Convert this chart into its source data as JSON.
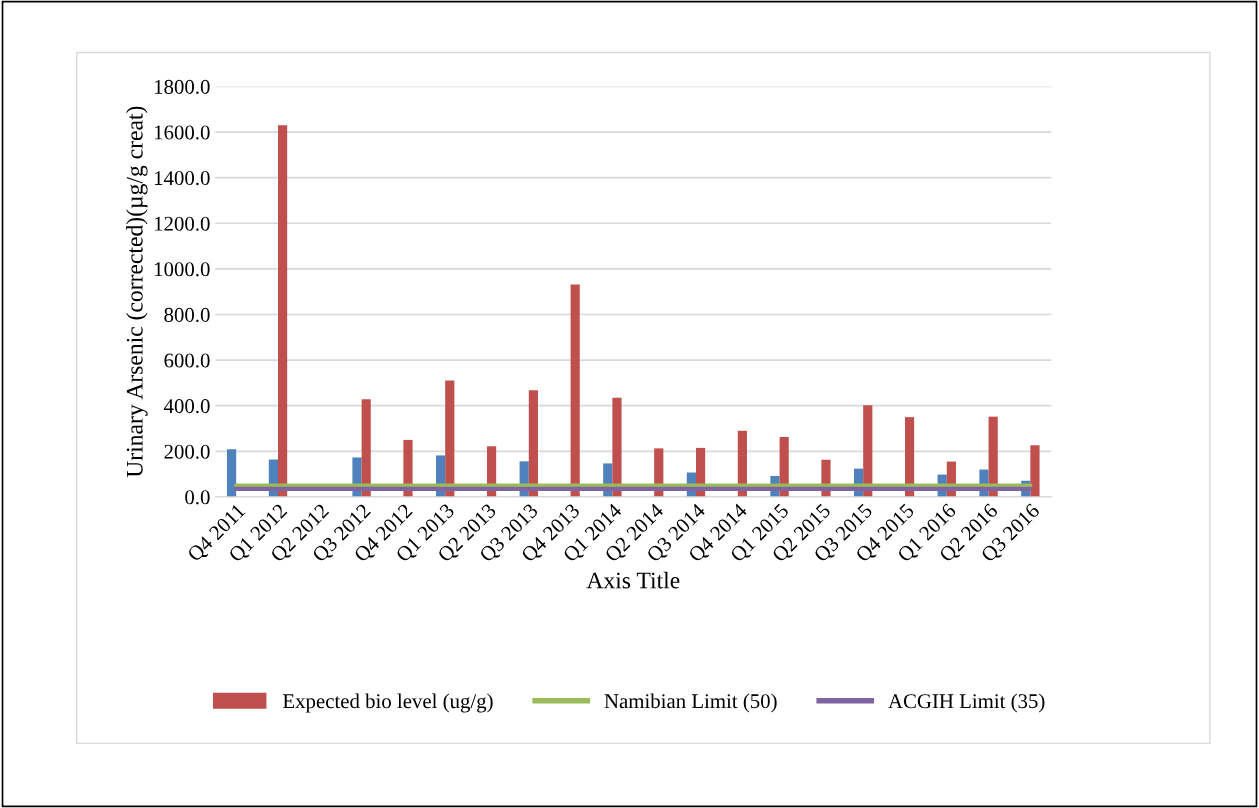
{
  "chart_data": {
    "type": "bar",
    "ylabel": "Urinary Arsenic (corrected)(µg/g creat)",
    "xlabel": "Axis Title",
    "categories": [
      "Q4 2011",
      "Q1 2012",
      "Q2 2012",
      "Q3 2012",
      "Q4 2012",
      "Q1 2013",
      "Q2 2013",
      "Q3 2013",
      "Q4 2013",
      "Q1 2014",
      "Q2 2014",
      "Q3 2014",
      "Q4 2014",
      "Q1 2015",
      "Q2 2015",
      "Q3 2015",
      "Q4 2015",
      "Q1 2016",
      "Q2 2016",
      "Q3 2016"
    ],
    "series": [
      {
        "color": "#4f81bd",
        "values": [
          209,
          164,
          null,
          173,
          null,
          182,
          null,
          156,
          null,
          147,
          null,
          107,
          null,
          92,
          null,
          124,
          null,
          98,
          120,
          71
        ]
      },
      {
        "name": "Expected bio level (ug/g)",
        "color": "#c0504d",
        "values": [
          null,
          1630,
          null,
          428,
          250,
          510,
          222,
          468,
          932,
          435,
          213,
          215,
          290,
          263,
          163,
          402,
          350,
          155,
          352,
          227
        ]
      },
      {
        "type": "line",
        "name": "Namibian Limit (50)",
        "color": "#9bbb59",
        "values": [
          50,
          50,
          50,
          50,
          50,
          50,
          50,
          50,
          50,
          50,
          50,
          50,
          50,
          50,
          50,
          50,
          50,
          50,
          50,
          50
        ]
      },
      {
        "type": "line",
        "name": "ACGIH Limit (35)",
        "color": "#8064a2",
        "values": [
          35,
          35,
          35,
          35,
          35,
          35,
          35,
          35,
          35,
          35,
          35,
          35,
          35,
          35,
          35,
          35,
          35,
          35,
          35,
          35
        ]
      }
    ],
    "ylim": [
      0,
      1800
    ],
    "yticks": [
      {
        "value": 0,
        "label": "0.0"
      },
      {
        "value": 200,
        "label": "200.0"
      },
      {
        "value": 400,
        "label": "400.0"
      },
      {
        "value": 600,
        "label": "600.0"
      },
      {
        "value": 800,
        "label": "800.0"
      },
      {
        "value": 1000,
        "label": "1000.0"
      },
      {
        "value": 1200,
        "label": "1200.0"
      },
      {
        "value": 1400,
        "label": "1400.0"
      },
      {
        "value": 1600,
        "label": "1600.0"
      },
      {
        "value": 1800,
        "label": "1800.0"
      }
    ],
    "grid": "y",
    "legend": "bottom"
  }
}
